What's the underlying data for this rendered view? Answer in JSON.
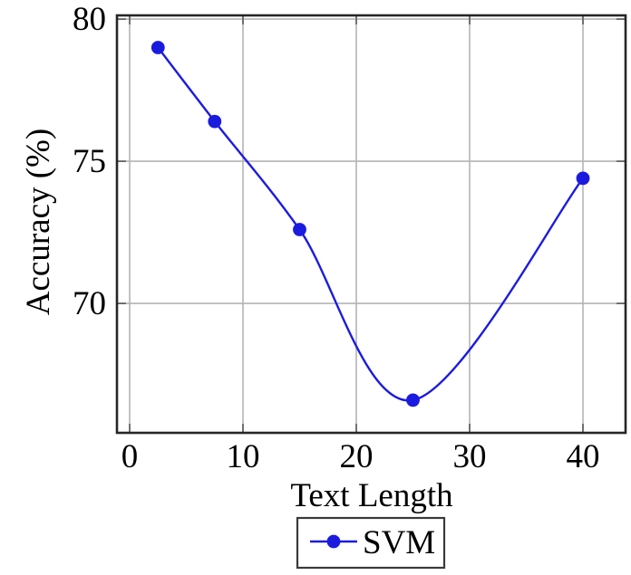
{
  "chart_data": {
    "type": "line",
    "title": "",
    "xlabel": "Text Length",
    "ylabel": "Accuracy (%)",
    "x_ticks": [
      0,
      10,
      20,
      30,
      40
    ],
    "y_ticks": [
      70,
      75,
      80
    ],
    "xlim": [
      -1.12,
      43.76
    ],
    "ylim": [
      65.45,
      80.13
    ],
    "grid": true,
    "legend": {
      "label": "SVM",
      "position": "below-x-axis-label",
      "boxed": true
    },
    "series": [
      {
        "name": "SVM",
        "x": [
          2.5,
          7.5,
          15,
          25,
          40
        ],
        "y": [
          79.0,
          76.4,
          72.6,
          66.6,
          74.4
        ],
        "marker": "filled-circle",
        "smooth": true,
        "color": "#1b1be0"
      }
    ],
    "colors": {
      "line": "#1b1be0",
      "grid": "#b4b4b4",
      "axis": "#262626",
      "tick": "#666666",
      "text": "#000000",
      "background": "#ffffff",
      "legend_border": "#3a3a3a"
    }
  }
}
